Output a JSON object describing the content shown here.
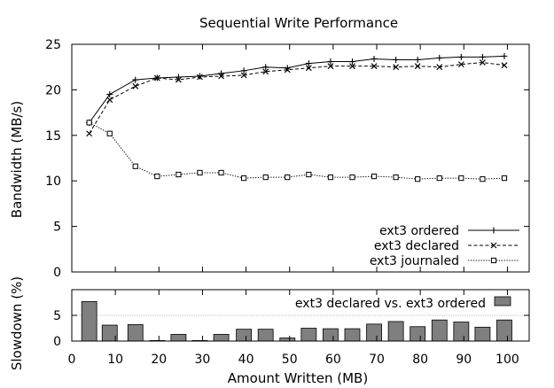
{
  "chart_data": [
    {
      "type": "line",
      "title": "Sequential Write Performance",
      "xlabel": "",
      "ylabel": "Bandwidth (MB/s)",
      "xlim": [
        0,
        105
      ],
      "ylim": [
        0,
        25
      ],
      "x_ticks": [
        "0",
        "10",
        "20",
        "30",
        "40",
        "50",
        "60",
        "70",
        "80",
        "90",
        "100"
      ],
      "y_ticks": [
        "0",
        "5",
        "10",
        "15",
        "20",
        "25"
      ],
      "legend_position": "bottom-right",
      "grid": false,
      "x": [
        4,
        8.7,
        14.6,
        19.6,
        24.5,
        29.4,
        34.3,
        39.5,
        44.5,
        49.5,
        54.4,
        59.4,
        64.4,
        69.4,
        74.4,
        79.4,
        84.4,
        89.4,
        94.3,
        99.3
      ],
      "series": [
        {
          "name": "ext3 ordered",
          "marker": "plus",
          "line_style": "solid",
          "values": [
            16.4,
            19.5,
            21.1,
            21.3,
            21.4,
            21.5,
            21.8,
            22.1,
            22.5,
            22.4,
            22.9,
            23.1,
            23.1,
            23.4,
            23.3,
            23.3,
            23.5,
            23.6,
            23.6,
            23.7
          ]
        },
        {
          "name": "ext3 declared",
          "marker": "x",
          "line_style": "dashed",
          "values": [
            15.2,
            18.9,
            20.4,
            21.3,
            21.1,
            21.4,
            21.5,
            21.6,
            22.0,
            22.2,
            22.4,
            22.6,
            22.6,
            22.6,
            22.5,
            22.6,
            22.5,
            22.8,
            23.0,
            22.7
          ]
        },
        {
          "name": "ext3 journaled",
          "marker": "square",
          "line_style": "dotted",
          "values": [
            16.4,
            15.2,
            11.6,
            10.5,
            10.7,
            10.9,
            10.9,
            10.3,
            10.4,
            10.4,
            10.7,
            10.4,
            10.4,
            10.5,
            10.4,
            10.2,
            10.3,
            10.3,
            10.2,
            10.3
          ]
        }
      ]
    },
    {
      "type": "bar",
      "title": "",
      "xlabel": "Amount Written (MB)",
      "ylabel": "Slowdown (%)",
      "xlim": [
        0,
        105
      ],
      "ylim": [
        0,
        10
      ],
      "x_ticks": [
        "0",
        "10",
        "20",
        "30",
        "40",
        "50",
        "60",
        "70",
        "80",
        "90",
        "100"
      ],
      "y_ticks": [
        "0",
        "5"
      ],
      "legend_position": "top-right",
      "grid": false,
      "x": [
        4,
        8.7,
        14.6,
        19.6,
        24.5,
        29.4,
        34.3,
        39.5,
        44.5,
        49.5,
        54.4,
        59.4,
        64.4,
        69.4,
        74.4,
        79.4,
        84.4,
        89.4,
        94.3,
        99.3
      ],
      "series": [
        {
          "name": "ext3 declared vs. ext3 ordered",
          "values": [
            7.7,
            3.1,
            3.2,
            0.1,
            1.3,
            0.1,
            1.3,
            2.3,
            2.3,
            0.6,
            2.5,
            2.4,
            2.4,
            3.3,
            3.8,
            2.8,
            4.1,
            3.7,
            2.7,
            4.1
          ]
        }
      ]
    }
  ],
  "colors": {
    "lines": "#000000",
    "bar_fill": "#7f7f7f",
    "bar_stroke": "#000000",
    "reference_line": "#aaaaaa"
  }
}
